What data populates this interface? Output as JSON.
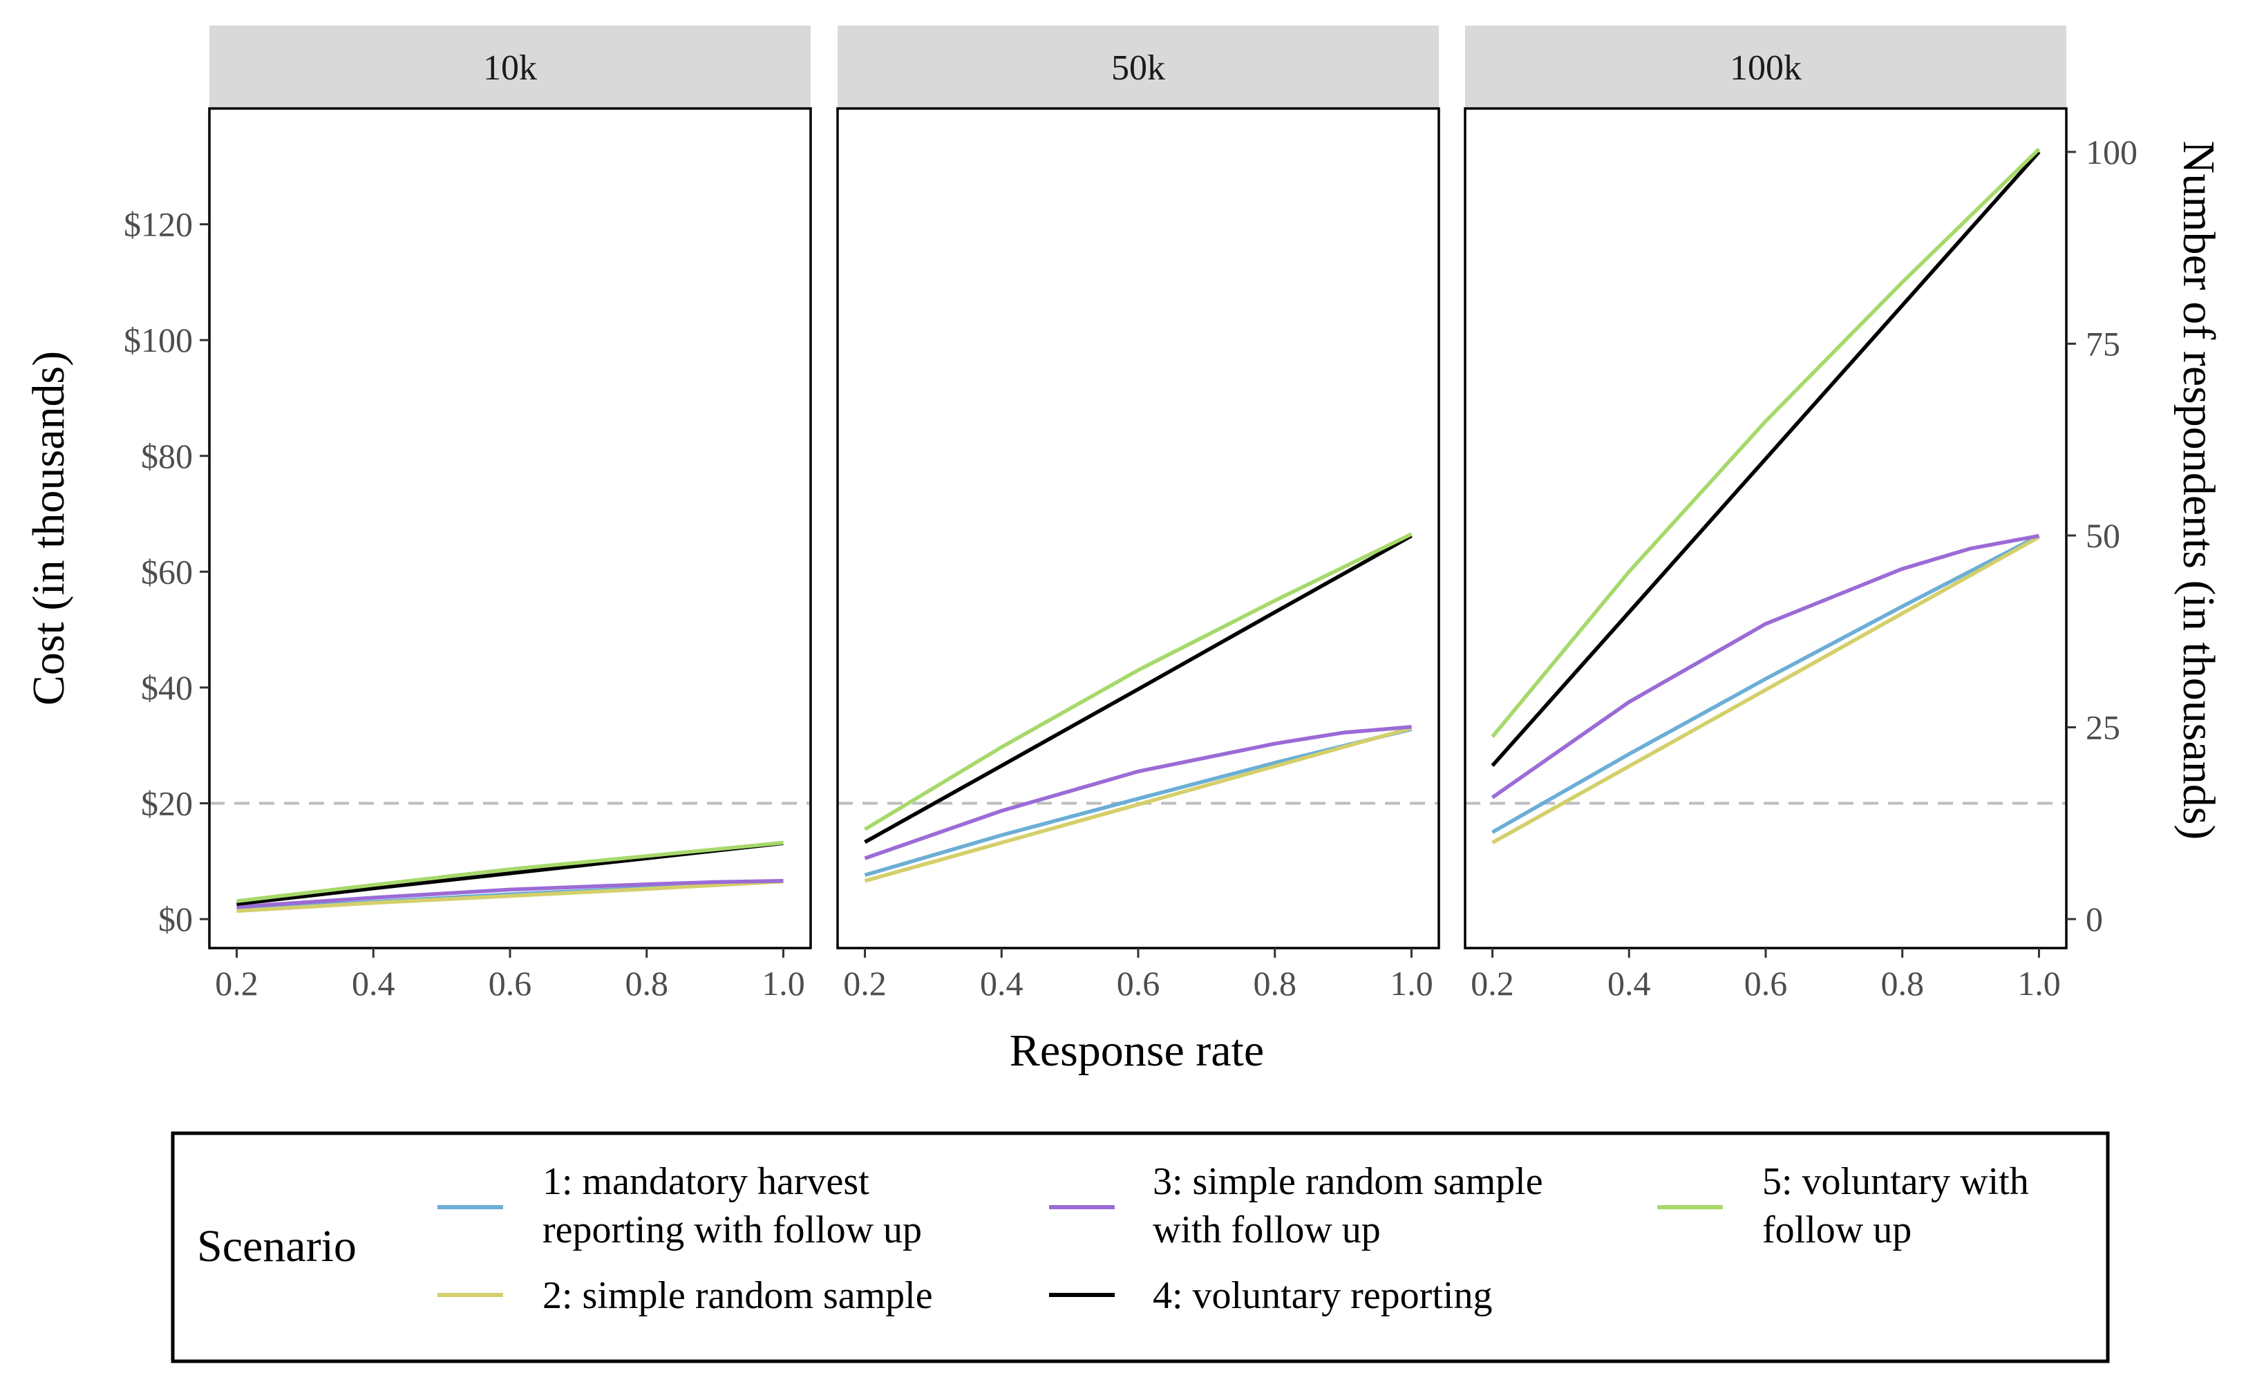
{
  "chart_data": {
    "type": "line",
    "facet_label_prefix": "",
    "panels": [
      {
        "label": "10k",
        "series": [
          {
            "name": "1: mandatory harvest reporting with follow up",
            "x": [
              0.2,
              0.4,
              0.6,
              0.8,
              1.0
            ],
            "values": [
              1.6,
              3.0,
              4.3,
              5.4,
              6.6
            ]
          },
          {
            "name": "2: simple random sample",
            "x": [
              0.2,
              0.4,
              0.6,
              0.8,
              1.0
            ],
            "values": [
              1.4,
              2.8,
              4.0,
              5.2,
              6.5
            ]
          },
          {
            "name": "3: simple random sample with follow up",
            "x": [
              0.2,
              0.4,
              0.6,
              0.8,
              0.9,
              1.0
            ],
            "values": [
              2.1,
              3.7,
              5.1,
              6.0,
              6.4,
              6.6
            ]
          },
          {
            "name": "4: voluntary reporting",
            "x": [
              0.2,
              0.4,
              0.6,
              0.8,
              1.0
            ],
            "values": [
              2.6,
              5.3,
              7.9,
              10.5,
              13.1
            ]
          },
          {
            "name": "5: voluntary with follow up",
            "x": [
              0.2,
              0.4,
              0.6,
              0.8,
              1.0
            ],
            "values": [
              3.1,
              5.9,
              8.6,
              10.9,
              13.2
            ]
          }
        ]
      },
      {
        "label": "50k",
        "series": [
          {
            "name": "1: mandatory harvest reporting with follow up",
            "x": [
              0.2,
              0.4,
              0.6,
              0.8,
              1.0
            ],
            "values": [
              7.6,
              14.5,
              20.8,
              27.0,
              32.8
            ]
          },
          {
            "name": "2: simple random sample",
            "x": [
              0.2,
              0.4,
              0.6,
              0.8,
              1.0
            ],
            "values": [
              6.6,
              13.2,
              19.8,
              26.4,
              33.0
            ]
          },
          {
            "name": "3: simple random sample with follow up",
            "x": [
              0.2,
              0.4,
              0.6,
              0.8,
              0.9,
              1.0
            ],
            "values": [
              10.5,
              18.7,
              25.5,
              30.3,
              32.2,
              33.2
            ]
          },
          {
            "name": "4: voluntary reporting",
            "x": [
              0.2,
              0.4,
              0.6,
              0.8,
              1.0
            ],
            "values": [
              13.3,
              26.5,
              39.7,
              53.0,
              66.2
            ]
          },
          {
            "name": "5: voluntary with follow up",
            "x": [
              0.2,
              0.4,
              0.6,
              0.8,
              1.0
            ],
            "values": [
              15.5,
              29.7,
              43.0,
              55.0,
              66.5
            ]
          }
        ]
      },
      {
        "label": "100k",
        "series": [
          {
            "name": "1: mandatory harvest reporting with follow up",
            "x": [
              0.2,
              0.4,
              0.6,
              0.8,
              1.0
            ],
            "values": [
              15.0,
              28.5,
              41.5,
              54.0,
              66.2
            ]
          },
          {
            "name": "2: simple random sample",
            "x": [
              0.2,
              0.4,
              0.6,
              0.8,
              1.0
            ],
            "values": [
              13.2,
              26.4,
              39.6,
              52.8,
              66.0
            ]
          },
          {
            "name": "3: simple random sample with follow up",
            "x": [
              0.2,
              0.4,
              0.6,
              0.8,
              0.9,
              1.0
            ],
            "values": [
              21.0,
              37.5,
              51.0,
              60.5,
              64.0,
              66.2
            ]
          },
          {
            "name": "4: voluntary reporting",
            "x": [
              0.2,
              0.4,
              0.6,
              0.8,
              1.0
            ],
            "values": [
              26.5,
              53.0,
              79.5,
              106.0,
              132.5
            ]
          },
          {
            "name": "5: voluntary with follow up",
            "x": [
              0.2,
              0.4,
              0.6,
              0.8,
              1.0
            ],
            "values": [
              31.5,
              60.0,
              86.0,
              110.0,
              133.0
            ]
          }
        ]
      }
    ],
    "series_colors": {
      "1: mandatory harvest reporting with follow up": "#6baed6",
      "2: simple random sample": "#d4cf6a",
      "3: simple random sample with follow up": "#9b6bd6",
      "4: voluntary reporting": "#000000",
      "5: voluntary with follow up": "#a6d96a"
    },
    "xlabel": "Response rate",
    "ylabel": "Cost (in thousands)",
    "ylabel_right": "Number of respondents (in thousands)",
    "xlim": [
      0.16,
      1.04
    ],
    "ylim": [
      -5,
      140
    ],
    "x_ticks": [
      0.2,
      0.4,
      0.6,
      0.8,
      1.0
    ],
    "x_tick_labels": [
      "0.2",
      "0.4",
      "0.6",
      "0.8",
      "1.0"
    ],
    "y_ticks": [
      0,
      20,
      40,
      60,
      80,
      100,
      120
    ],
    "y_tick_labels": [
      "$0",
      "$20",
      "$40",
      "$60",
      "$80",
      "$100",
      "$120"
    ],
    "y_right_ticks": [
      0,
      25,
      50,
      75,
      100
    ],
    "y_right_tick_labels": [
      "0",
      "25",
      "50",
      "75",
      "100"
    ],
    "y_right_scale": 1.325,
    "reference_line": {
      "y": 20,
      "style": "dashed",
      "color": "#bdbdbd"
    },
    "grid": false,
    "legend": {
      "position": "bottom",
      "title": "Scenario",
      "entries": [
        {
          "series": "1: mandatory harvest reporting with follow up",
          "lines": [
            "1: mandatory harvest",
            "reporting with follow up"
          ]
        },
        {
          "series": "2: simple random sample",
          "lines": [
            "2: simple random sample"
          ]
        },
        {
          "series": "3: simple random sample with follow up",
          "lines": [
            "3: simple random sample",
            "with follow up"
          ]
        },
        {
          "series": "4: voluntary reporting",
          "lines": [
            "4: voluntary reporting"
          ]
        },
        {
          "series": "5: voluntary with follow up",
          "lines": [
            "5: voluntary with",
            "follow up"
          ]
        }
      ]
    }
  }
}
